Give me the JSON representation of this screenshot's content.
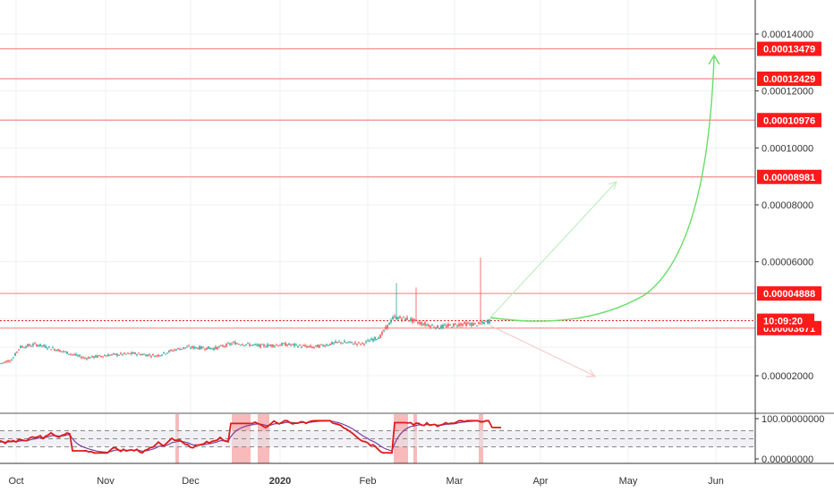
{
  "chart_data": {
    "type": "candlestick",
    "price_axis": {
      "ticks": [
        "0.00014000",
        "0.00012000",
        "0.00010000",
        "0.00008000",
        "0.00006000",
        "0.00002000"
      ],
      "tick_values": [
        0.00014,
        0.00012,
        0.0001,
        8e-05,
        6e-05,
        2e-05
      ],
      "partial_tick": "0"
    },
    "time_axis": {
      "labels": [
        "Oct",
        "Nov",
        "Dec",
        "2020",
        "Feb",
        "Mar",
        "Apr",
        "May",
        "Jun"
      ]
    },
    "horizontal_levels": [
      {
        "value": 0.00013479,
        "label": "0.00013479"
      },
      {
        "value": 0.00012429,
        "label": "0.00012429"
      },
      {
        "value": 0.00010976,
        "label": "0.00010976"
      },
      {
        "value": 8.981e-05,
        "label": "0.00008981"
      },
      {
        "value": 4.888e-05,
        "label": "0.00004888"
      },
      {
        "value": 3.671e-05,
        "label": "0.00003671"
      }
    ],
    "current_price_label": "10:09:20",
    "indicator_axis": {
      "ticks": [
        "100.00000000",
        "0.00000000"
      ],
      "tick_values": [
        100,
        0
      ]
    },
    "colors": {
      "up": "#26a69a",
      "down": "#ef5350",
      "level": "#f28b8b",
      "label_bg": "#ff1a1a",
      "projection": "#66dd66",
      "rsi": "#e01a1a",
      "signal": "#7b3fa0",
      "highlight": "#f5a3a3"
    }
  }
}
